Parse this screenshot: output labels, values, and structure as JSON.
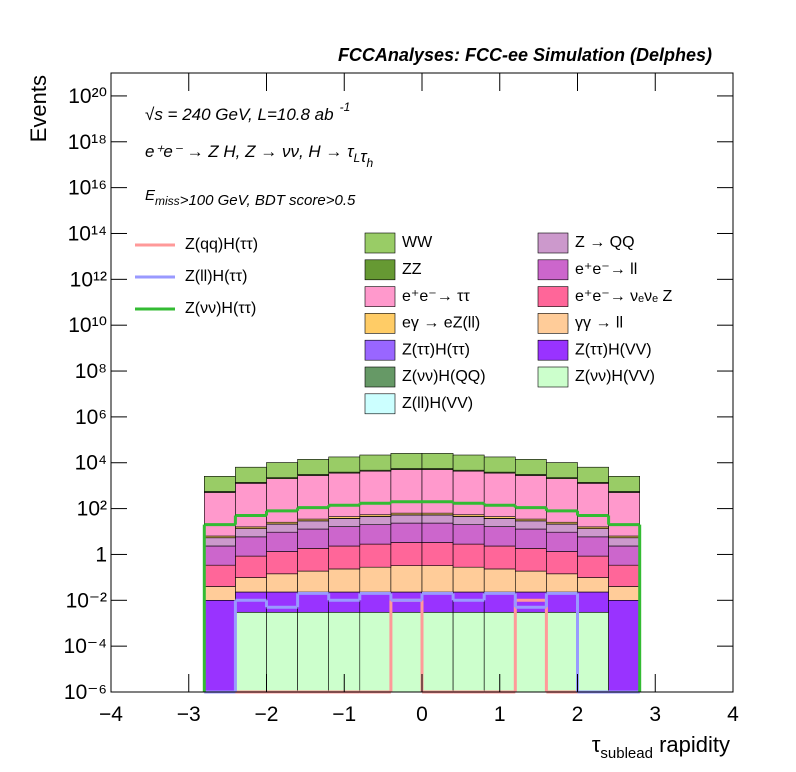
{
  "chart_data": {
    "type": "stacked-histogram",
    "title": "FCCAnalyses: FCC-ee Simulation (Delphes)",
    "annotations": [
      {
        "parts": [
          "√s = 240 GeV, L=10.8 ab",
          {
            "sup": "-1"
          }
        ]
      },
      {
        "parts": [
          "e⁺e⁻ → Z H, Z  → νν, H → τ",
          {
            "sub": "L"
          },
          "τ",
          {
            "sub": "h"
          }
        ]
      },
      {
        "parts": [
          "E",
          {
            "sub": "miss"
          },
          ">100 GeV, BDT score>0.5"
        ]
      }
    ],
    "y_label": "Events",
    "x_label": {
      "symbol": "τ",
      "subscript": "sublead",
      "text": " rapidity"
    },
    "log_y": true,
    "xlim": [
      -4,
      4
    ],
    "ylim": [
      1e-06,
      1e+21
    ],
    "xticks": [
      {
        "value": -4,
        "label": "−4"
      },
      {
        "value": -3,
        "label": "−3"
      },
      {
        "value": -2,
        "label": "−2"
      },
      {
        "value": -1,
        "label": "−1"
      },
      0,
      1,
      2,
      3,
      4
    ],
    "yticks": [
      {
        "value": 1e-06,
        "label": "10⁻⁶"
      },
      {
        "value": 0.0001,
        "label": "10⁻⁴"
      },
      {
        "value": 0.01,
        "label": "10⁻²"
      },
      1,
      {
        "value": 100,
        "label": "10²"
      },
      {
        "value": 10000,
        "label": "10⁴"
      },
      {
        "value": 1000000,
        "label": "10⁶"
      },
      {
        "value": 100000000,
        "label": "10⁸"
      },
      {
        "value": 10000000000,
        "label": "10¹⁰"
      },
      {
        "value": 1000000000000,
        "label": "10¹²"
      },
      {
        "value": 100000000000000,
        "label": "10¹⁴"
      },
      {
        "value": 10000000000000000,
        "label": "10¹⁶"
      },
      {
        "value": 1000000000000000000,
        "label": "10¹⁸"
      },
      {
        "value": 100000000000000000000,
        "label": "10²⁰"
      }
    ],
    "bins": [
      -2.8,
      -2.4,
      -2.0,
      -1.6,
      -1.2,
      -0.8,
      -0.4,
      0,
      0.4,
      0.8,
      1.2,
      1.6,
      2.0,
      2.4,
      2.8
    ],
    "series": [
      {
        "name": "WW",
        "color": "#99cc66",
        "values": [
          2000,
          5000,
          8000,
          11000,
          14000,
          17000,
          20000,
          20000,
          17000,
          14000,
          11000,
          8000,
          5000,
          2000
        ]
      },
      {
        "name": "ZZ",
        "color": "#669933",
        "values": [
          50,
          125,
          200,
          275,
          350,
          425,
          500,
          500,
          425,
          350,
          275,
          200,
          125,
          50
        ]
      },
      {
        "name": "e⁺e⁻→ ττ",
        "color": "#ff99cc",
        "values": [
          500,
          1250,
          2000,
          2750,
          3500,
          4250,
          5000,
          5000,
          4250,
          3500,
          2750,
          2000,
          1250,
          500
        ]
      },
      {
        "name": "eγ → eZ(ll)",
        "color": "#ffcc66",
        "values": [
          1,
          2.5,
          4,
          5.5,
          7,
          8.5,
          10,
          10,
          8.5,
          7,
          5.5,
          4,
          2.5,
          1
        ]
      },
      {
        "name": "Z(ττ)H(ττ)",
        "color": "#9966ff",
        "values": [
          0.02,
          0.04,
          0.05,
          0.05,
          0.05,
          0.05,
          0.05,
          0.05,
          0.05,
          0.05,
          0.05,
          0.05,
          0.04,
          0.02
        ]
      },
      {
        "name": "Z(νν)H(QQ)",
        "color": "#669966",
        "values": [
          0,
          0.01,
          0.01,
          0.01,
          0.01,
          0.01,
          0.01,
          0.01,
          0.01,
          0.01,
          0.01,
          0.01,
          0.01,
          0
        ]
      },
      {
        "name": "Z(ll)H(VV)",
        "color": "#ccffff",
        "values": [
          0,
          0.01,
          0.01,
          0.01,
          0.01,
          0.01,
          0.01,
          0.01,
          0.01,
          0.01,
          0.01,
          0.01,
          0.01,
          0
        ]
      },
      {
        "name": "Z → QQ",
        "color": "#cc99cc",
        "values": [
          3,
          7.5,
          12,
          16.5,
          21,
          25.5,
          30,
          30,
          25.5,
          21,
          16.5,
          12,
          7.5,
          3
        ]
      },
      {
        "name": "e⁺e⁻→ ll",
        "color": "#cc66cc",
        "values": [
          2,
          5,
          8,
          11,
          14,
          17,
          20,
          20,
          17,
          14,
          11,
          8,
          5,
          2
        ]
      },
      {
        "name": "e⁺e⁻→ νₑνₑ Z",
        "color": "#ff6699",
        "values": [
          0.3,
          0.75,
          1.2,
          1.65,
          2.1,
          2.55,
          3,
          3,
          2.55,
          2.1,
          1.65,
          1.2,
          0.75,
          0.3
        ]
      },
      {
        "name": "γγ → ll",
        "color": "#ffcc99",
        "values": [
          0.03,
          0.075,
          0.12,
          0.165,
          0.21,
          0.255,
          0.3,
          0.3,
          0.255,
          0.21,
          0.165,
          0.12,
          0.075,
          0.03
        ]
      },
      {
        "name": "Z(ττ)H(VV)",
        "color": "#9933ff",
        "values": [
          0.01,
          0.02,
          0.02,
          0.02,
          0.02,
          0.02,
          0.02,
          0.02,
          0.02,
          0.02,
          0.02,
          0.02,
          0.02,
          0.01
        ]
      },
      {
        "name": "Z(νν)H(VV)",
        "color": "#ccffcc",
        "values": [
          0,
          0.003,
          0.003,
          0.003,
          0.003,
          0.003,
          0.003,
          0.003,
          0.003,
          0.003,
          0.003,
          0.003,
          0.003,
          0
        ]
      }
    ],
    "lines": [
      {
        "name": "Z(qq)H(ττ)",
        "color": "#ff9999",
        "values": [
          0,
          0,
          0,
          0,
          0,
          0,
          0.01,
          0,
          0,
          0,
          0.01,
          0,
          0,
          0
        ]
      },
      {
        "name": "Z(ll)H(ττ)",
        "color": "#9999ff",
        "values": [
          0,
          0.01,
          0.005,
          0.02,
          0.01,
          0.02,
          0.01,
          0.02,
          0.01,
          0.02,
          0.005,
          0.02,
          0,
          0
        ]
      },
      {
        "name": "Z(νν)H(ττ)",
        "color": "#33bb33",
        "values": [
          20,
          50,
          80,
          110,
          140,
          170,
          200,
          200,
          170,
          140,
          110,
          80,
          50,
          20
        ]
      }
    ]
  }
}
